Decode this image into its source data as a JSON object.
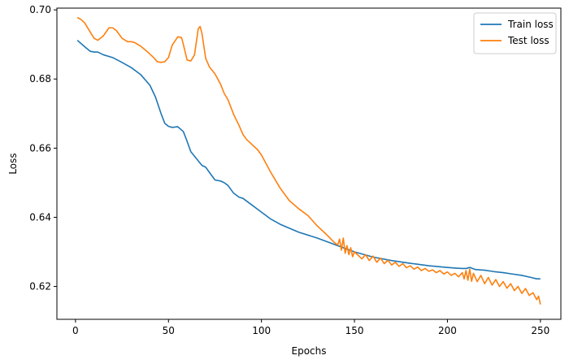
{
  "chart_data": {
    "type": "line",
    "title": "",
    "xlabel": "Epochs",
    "ylabel": "Loss",
    "xlim": [
      -10,
      261
    ],
    "ylim": [
      0.6105,
      0.7005
    ],
    "xticks": [
      0,
      50,
      100,
      150,
      200,
      250
    ],
    "yticks": [
      0.62,
      0.64,
      0.66,
      0.68,
      0.7
    ],
    "ytick_labels": [
      "0.62",
      "0.64",
      "0.66",
      "0.68",
      "0.70"
    ],
    "xtick_labels": [
      "0",
      "50",
      "100",
      "150",
      "200",
      "250"
    ],
    "grid": false,
    "legend_position": "top-right",
    "series": [
      {
        "name": "Train loss",
        "color": "#1f77b4",
        "x": [
          1,
          5,
          8,
          10,
          12,
          15,
          20,
          25,
          30,
          35,
          40,
          43,
          46,
          48,
          50,
          52,
          55,
          58,
          60,
          62,
          65,
          68,
          70,
          72,
          75,
          78,
          80,
          82,
          85,
          88,
          90,
          95,
          100,
          105,
          110,
          120,
          130,
          140,
          150,
          160,
          170,
          180,
          190,
          200,
          205,
          208,
          210,
          212,
          215,
          220,
          225,
          230,
          235,
          240,
          245,
          248,
          250
        ],
        "y": [
          0.6912,
          0.6893,
          0.688,
          0.6878,
          0.6878,
          0.687,
          0.6862,
          0.6848,
          0.6833,
          0.6813,
          0.6782,
          0.6748,
          0.67,
          0.6672,
          0.6663,
          0.666,
          0.6662,
          0.6648,
          0.662,
          0.659,
          0.657,
          0.655,
          0.6545,
          0.653,
          0.6508,
          0.6505,
          0.65,
          0.6492,
          0.647,
          0.6458,
          0.6455,
          0.6435,
          0.6415,
          0.6395,
          0.638,
          0.6357,
          0.634,
          0.632,
          0.63,
          0.6285,
          0.6275,
          0.6267,
          0.626,
          0.6255,
          0.6253,
          0.6252,
          0.6252,
          0.6255,
          0.6249,
          0.6247,
          0.6243,
          0.624,
          0.6236,
          0.6232,
          0.6226,
          0.6222,
          0.6222
        ]
      },
      {
        "name": "Test loss",
        "color": "#ff7f0e",
        "x": [
          1,
          3,
          5,
          8,
          10,
          12,
          15,
          18,
          20,
          22,
          25,
          28,
          30,
          32,
          35,
          38,
          40,
          42,
          44,
          46,
          48,
          50,
          52,
          55,
          57,
          58,
          60,
          62,
          64,
          66,
          67,
          68,
          70,
          72,
          75,
          78,
          80,
          82,
          85,
          88,
          90,
          92,
          95,
          98,
          100,
          105,
          110,
          115,
          120,
          125,
          130,
          135,
          139,
          141,
          142,
          143,
          144,
          145,
          146,
          147,
          148,
          149,
          150,
          152,
          154,
          156,
          158,
          160,
          162,
          164,
          166,
          168,
          170,
          172,
          174,
          176,
          178,
          180,
          182,
          184,
          186,
          188,
          190,
          192,
          194,
          196,
          198,
          200,
          202,
          204,
          206,
          208,
          209,
          210,
          211,
          212,
          213,
          214,
          216,
          218,
          220,
          222,
          224,
          226,
          228,
          230,
          232,
          234,
          236,
          238,
          240,
          242,
          244,
          246,
          248,
          249,
          250
        ],
        "y": [
          0.6978,
          0.6972,
          0.6962,
          0.6935,
          0.6918,
          0.6912,
          0.6925,
          0.6948,
          0.6948,
          0.694,
          0.6918,
          0.6908,
          0.6908,
          0.6905,
          0.6895,
          0.6882,
          0.6872,
          0.6862,
          0.685,
          0.6848,
          0.685,
          0.6862,
          0.6898,
          0.6922,
          0.692,
          0.69,
          0.6855,
          0.6852,
          0.687,
          0.6945,
          0.6952,
          0.6932,
          0.686,
          0.6835,
          0.6815,
          0.6785,
          0.6758,
          0.674,
          0.6698,
          0.6665,
          0.664,
          0.6625,
          0.661,
          0.6595,
          0.658,
          0.653,
          0.6485,
          0.6448,
          0.6425,
          0.6405,
          0.6375,
          0.635,
          0.6328,
          0.632,
          0.6337,
          0.6305,
          0.634,
          0.6296,
          0.6318,
          0.6292,
          0.6312,
          0.6286,
          0.63,
          0.629,
          0.628,
          0.6292,
          0.6275,
          0.6288,
          0.627,
          0.6282,
          0.6266,
          0.6276,
          0.6262,
          0.627,
          0.6258,
          0.6266,
          0.6254,
          0.626,
          0.625,
          0.6256,
          0.6246,
          0.6252,
          0.6244,
          0.6248,
          0.624,
          0.6246,
          0.6236,
          0.6242,
          0.6232,
          0.6238,
          0.6228,
          0.624,
          0.6222,
          0.6246,
          0.6218,
          0.625,
          0.6215,
          0.6238,
          0.6214,
          0.6232,
          0.6208,
          0.6226,
          0.6204,
          0.622,
          0.62,
          0.6214,
          0.6195,
          0.6208,
          0.6188,
          0.62,
          0.618,
          0.6194,
          0.6174,
          0.6182,
          0.6162,
          0.6172,
          0.6148
        ]
      }
    ]
  }
}
